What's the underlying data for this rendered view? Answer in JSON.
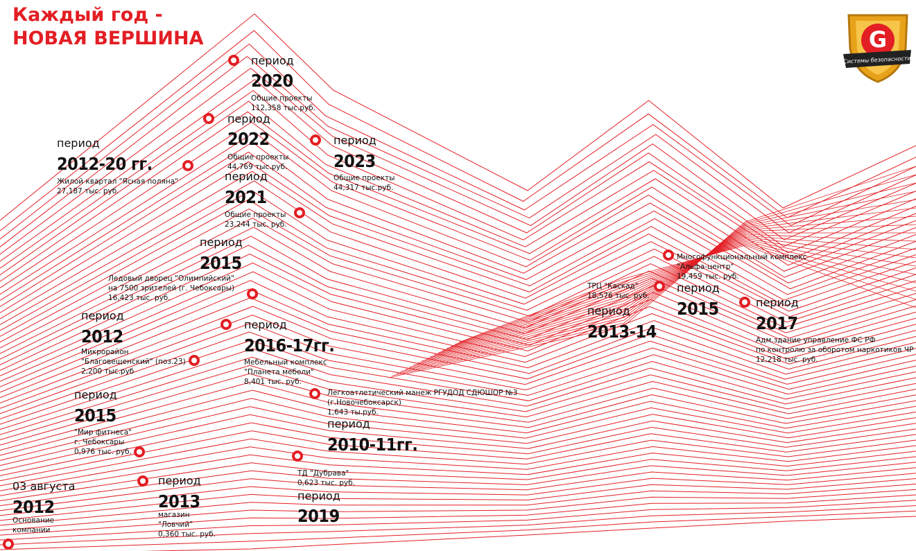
{
  "header": {
    "title_lines": [
      "Каждый год -",
      "НОВАЯ ВЕРШИНА"
    ]
  },
  "logo": {
    "letter": "G",
    "caption": "Системы безопасности"
  },
  "milestones": [
    {
      "label": "03 августа",
      "year": "2012",
      "details": [
        "Основание",
        "компании"
      ]
    },
    {
      "label": "период",
      "year": "2013",
      "details": [
        "магазин",
        "\"Ловчий\"",
        "0,360 тыс. руб."
      ]
    },
    {
      "label": "период",
      "year": "2019",
      "details": [
        "ТД \"Дубрава\"",
        "0,623 тыс. руб."
      ]
    },
    {
      "label": "период",
      "year": "2015",
      "details": [
        "\"Мир фитнеса\"",
        "г. Чебоксары",
        "0,976 тыс. руб."
      ]
    },
    {
      "label": "период",
      "year": "2010-11гг.",
      "details": [
        "Легкоатлетический манеж РГУДОД СДЮШОР №3",
        "(г.Новочебоксарск)",
        "1,643 ты.руб."
      ]
    },
    {
      "label": "период",
      "year": "2012",
      "details": [
        "Микрорайон",
        "\"Благовещенский\" (поз.23)",
        "2,200 тыс.руб"
      ]
    },
    {
      "label": "период",
      "year": "2016-17гг.",
      "details": [
        "Мебельный комплекс",
        "\"Планета мебели\"",
        "8,401 тыс. руб."
      ]
    },
    {
      "label": "период",
      "year": "2015",
      "details": [
        "Ледовый дворец \"Олимпийский\"",
        "на 7500 зрителей (г. Чебоксары)",
        "16,423 тыс. руб."
      ]
    },
    {
      "label": "период",
      "year": "2021",
      "details": [
        "Общие проекты",
        "23,244 тыс. руб."
      ]
    },
    {
      "label": "период",
      "year": "2012-20 гг.",
      "details": [
        "Жилой квартал \"Ясная поляна\"",
        "27,187 тыс. руб."
      ]
    },
    {
      "label": "период",
      "year": "2022",
      "details": [
        "Общие проекты",
        "44,769 тыс.руб."
      ]
    },
    {
      "label": "период",
      "year": "2023",
      "details": [
        "Общие проекты",
        "44,317 тыс.руб."
      ]
    },
    {
      "label": "период",
      "year": "2020",
      "details": [
        "Общие проекты",
        "112,358 тыс.руб."
      ]
    },
    {
      "label": "период",
      "year": "2013-14",
      "details": [
        "ТРЦ \"Каскад\"",
        "18,576 тыс. руб."
      ]
    },
    {
      "label": "период",
      "year": "2015",
      "details": [
        "Многофункциональный комплекс",
        "\"Альфа-центр\"",
        "19,459 тыс. руб."
      ]
    },
    {
      "label": "период",
      "year": "2017",
      "details": [
        "Адм.здание управление ФС РФ",
        "по контролю за оборотом наркотиков ЧР",
        "12,218 тыс. руб."
      ]
    }
  ]
}
